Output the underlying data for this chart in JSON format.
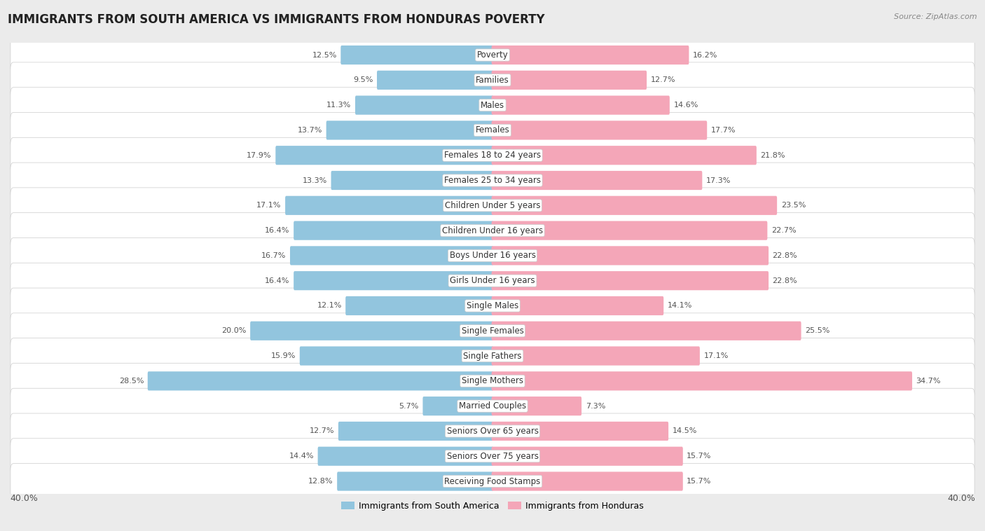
{
  "title": "IMMIGRANTS FROM SOUTH AMERICA VS IMMIGRANTS FROM HONDURAS POVERTY",
  "source": "Source: ZipAtlas.com",
  "categories": [
    "Poverty",
    "Families",
    "Males",
    "Females",
    "Females 18 to 24 years",
    "Females 25 to 34 years",
    "Children Under 5 years",
    "Children Under 16 years",
    "Boys Under 16 years",
    "Girls Under 16 years",
    "Single Males",
    "Single Females",
    "Single Fathers",
    "Single Mothers",
    "Married Couples",
    "Seniors Over 65 years",
    "Seniors Over 75 years",
    "Receiving Food Stamps"
  ],
  "south_america": [
    12.5,
    9.5,
    11.3,
    13.7,
    17.9,
    13.3,
    17.1,
    16.4,
    16.7,
    16.4,
    12.1,
    20.0,
    15.9,
    28.5,
    5.7,
    12.7,
    14.4,
    12.8
  ],
  "honduras": [
    16.2,
    12.7,
    14.6,
    17.7,
    21.8,
    17.3,
    23.5,
    22.7,
    22.8,
    22.8,
    14.1,
    25.5,
    17.1,
    34.7,
    7.3,
    14.5,
    15.7,
    15.7
  ],
  "blue_color": "#92C5DE",
  "pink_color": "#F4A6B8",
  "bg_color": "#EBEBEB",
  "axis_max": 40.0,
  "label_fontsize": 8.5,
  "title_fontsize": 12,
  "value_fontsize": 8.0
}
